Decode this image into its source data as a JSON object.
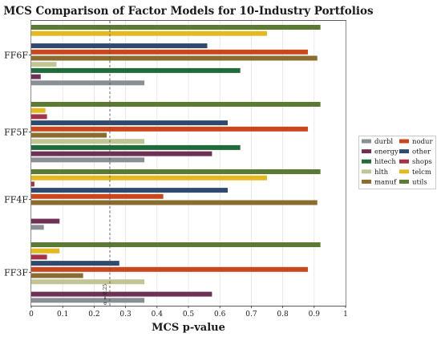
{
  "chart_data": {
    "type": "bar",
    "orientation": "horizontal",
    "title": "MCS Comparison of Factor Models for 10-Industry Portfolios",
    "xlabel": "MCS p-value",
    "ylabel": "",
    "xlim": [
      0,
      1
    ],
    "xticks": [
      "0",
      "0.1",
      "0.2",
      "0.3",
      "0.4",
      "0.5",
      "0.6",
      "0.7",
      "0.8",
      "0.9",
      "1"
    ],
    "grid": true,
    "legend_position": "right",
    "threshold": {
      "value": 0.25,
      "label": "α = 0.25"
    },
    "categories": [
      "FF6F",
      "FF5F",
      "FF4F",
      "FF3F"
    ],
    "series": [
      {
        "name": "durbl",
        "color": "#8a8f96",
        "values": [
          0.36,
          0.36,
          0.04,
          0.36
        ]
      },
      {
        "name": "energy",
        "color": "#6e3155",
        "values": [
          0.03,
          0.575,
          0.09,
          0.575
        ]
      },
      {
        "name": "hitech",
        "color": "#1f6b3a",
        "values": [
          0.665,
          0.665,
          null,
          null
        ]
      },
      {
        "name": "hlth",
        "color": "#c2c494",
        "values": [
          0.08,
          0.36,
          null,
          0.36
        ]
      },
      {
        "name": "manuf",
        "color": "#8a6d2e",
        "values": [
          0.91,
          0.24,
          0.91,
          0.165
        ]
      },
      {
        "name": "nodur",
        "color": "#c9471d",
        "values": [
          0.88,
          0.88,
          0.42,
          0.88
        ]
      },
      {
        "name": "other",
        "color": "#2f4a6e",
        "values": [
          0.56,
          0.625,
          0.625,
          0.28
        ]
      },
      {
        "name": "shops",
        "color": "#a33348",
        "values": [
          null,
          0.05,
          0.01,
          0.05
        ]
      },
      {
        "name": "telcm",
        "color": "#e5b81f",
        "values": [
          0.75,
          0.045,
          0.75,
          0.09
        ]
      },
      {
        "name": "utils",
        "color": "#5b7a34",
        "values": [
          0.92,
          0.92,
          0.92,
          0.92
        ]
      }
    ]
  }
}
